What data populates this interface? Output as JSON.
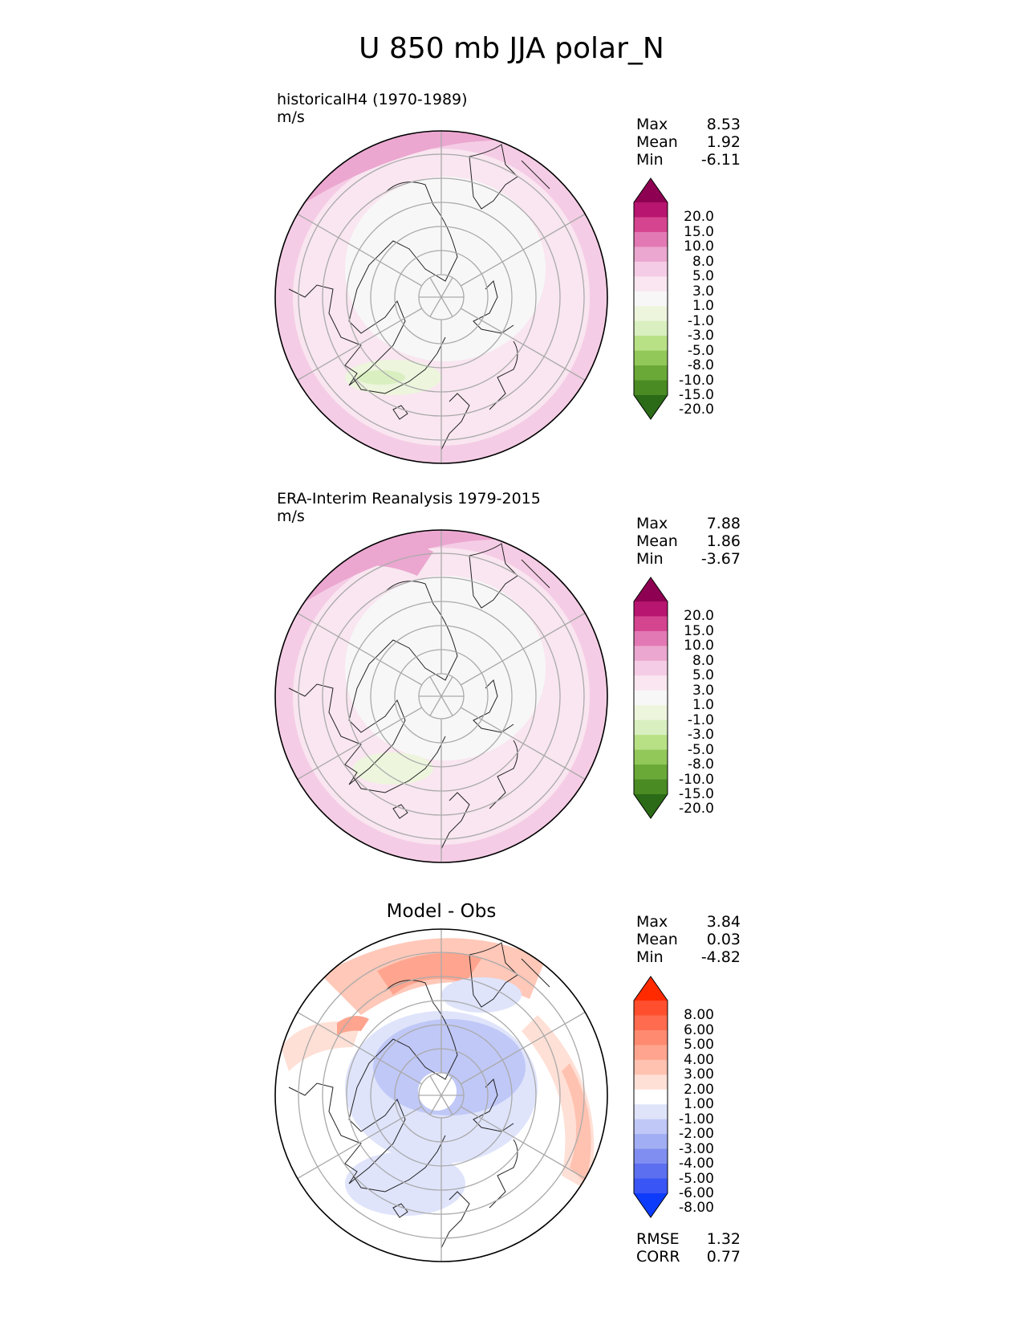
{
  "title": "U 850 mb JJA polar_N",
  "panels": [
    {
      "id": "test",
      "title_line1": "historicalH4 (1970-1989)",
      "title_line2": "m/s",
      "stats": [
        {
          "label": "Max",
          "value": "8.53"
        },
        {
          "label": "Mean",
          "value": "1.92"
        },
        {
          "label": "Min",
          "value": "-6.11"
        }
      ],
      "colorbar": {
        "levels": [
          "20.0",
          "15.0",
          "10.0",
          "8.0",
          "5.0",
          "3.0",
          "1.0",
          "-1.0",
          "-3.0",
          "-5.0",
          "-8.0",
          "-10.0",
          "-15.0",
          "-20.0"
        ],
        "colors": [
          "#8e0152",
          "#b7156f",
          "#d5448f",
          "#e279b4",
          "#eba7d0",
          "#f5cce5",
          "#f9e6f0",
          "#f7f7f7",
          "#edf5dd",
          "#d9efc0",
          "#b8e186",
          "#92c85a",
          "#6aa937",
          "#4a8b23",
          "#2b6a16"
        ]
      }
    },
    {
      "id": "reference",
      "title_line1": "ERA-Interim Reanalysis 1979-2015",
      "title_line2": "m/s",
      "stats": [
        {
          "label": "Max",
          "value": "7.88"
        },
        {
          "label": "Mean",
          "value": "1.86"
        },
        {
          "label": "Min",
          "value": "-3.67"
        }
      ],
      "colorbar": {
        "levels": [
          "20.0",
          "15.0",
          "10.0",
          "8.0",
          "5.0",
          "3.0",
          "1.0",
          "-1.0",
          "-3.0",
          "-5.0",
          "-8.0",
          "-10.0",
          "-15.0",
          "-20.0"
        ],
        "colors": [
          "#8e0152",
          "#b7156f",
          "#d5448f",
          "#e279b4",
          "#eba7d0",
          "#f5cce5",
          "#f9e6f0",
          "#f7f7f7",
          "#edf5dd",
          "#d9efc0",
          "#b8e186",
          "#92c85a",
          "#6aa937",
          "#4a8b23",
          "#2b6a16"
        ]
      }
    },
    {
      "id": "difference",
      "title": "Model - Obs",
      "stats": [
        {
          "label": "Max",
          "value": "3.84"
        },
        {
          "label": "Mean",
          "value": "0.03"
        },
        {
          "label": "Min",
          "value": "-4.82"
        }
      ],
      "metrics": [
        {
          "label": "RMSE",
          "value": "1.32"
        },
        {
          "label": "CORR",
          "value": "0.77"
        }
      ],
      "colorbar": {
        "levels": [
          "8.00",
          "6.00",
          "5.00",
          "4.00",
          "3.00",
          "2.00",
          "1.00",
          "-1.00",
          "-2.00",
          "-3.00",
          "-4.00",
          "-5.00",
          "-6.00",
          "-8.00"
        ],
        "colors": [
          "#ff2a00",
          "#ff4f2e",
          "#ff6b4f",
          "#ff8a70",
          "#ffa58f",
          "#ffc2b0",
          "#ffe0d6",
          "#ffffff",
          "#dfe4fb",
          "#c0c8f7",
          "#a1aef3",
          "#7f8ef0",
          "#5c6ff0",
          "#3a55f5",
          "#0d3bfb"
        ]
      }
    }
  ]
}
